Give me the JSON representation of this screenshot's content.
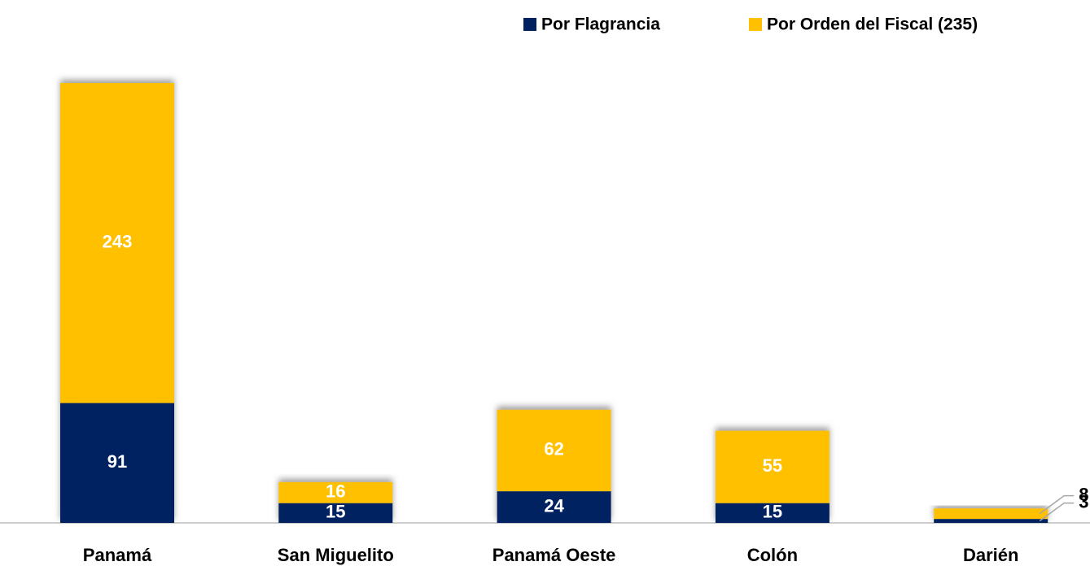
{
  "chart_data": {
    "type": "stacked_bar",
    "categories": [
      "Panamá",
      "San Miguelito",
      "Panamá Oeste",
      "Colón",
      "Darién"
    ],
    "series": [
      {
        "name": "Por Flagrancia",
        "color": "#002060",
        "values": [
          91,
          15,
          24,
          15,
          3
        ]
      },
      {
        "name": "Por Orden del Fiscal (235)",
        "color": "#ffc000",
        "values": [
          243,
          16,
          62,
          55,
          8
        ]
      }
    ],
    "legend": "top"
  }
}
